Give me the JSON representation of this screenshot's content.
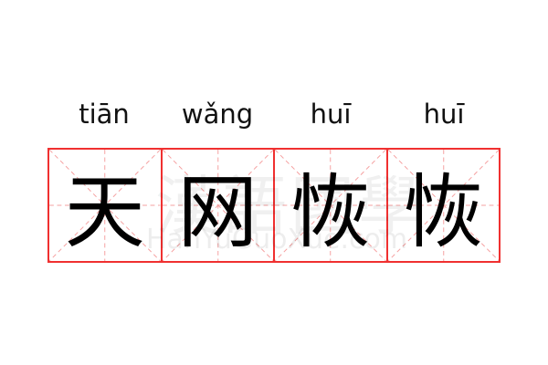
{
  "pinyin": [
    "tiān",
    "wǎng",
    "huī",
    "huī"
  ],
  "characters": [
    "天",
    "网",
    "恢",
    "恢"
  ],
  "watermark": {
    "logo": "漢語國學",
    "site": "HanYuGuoXue.com"
  },
  "colors": {
    "grid": "#f03030",
    "guides": "#f5a0a0"
  }
}
